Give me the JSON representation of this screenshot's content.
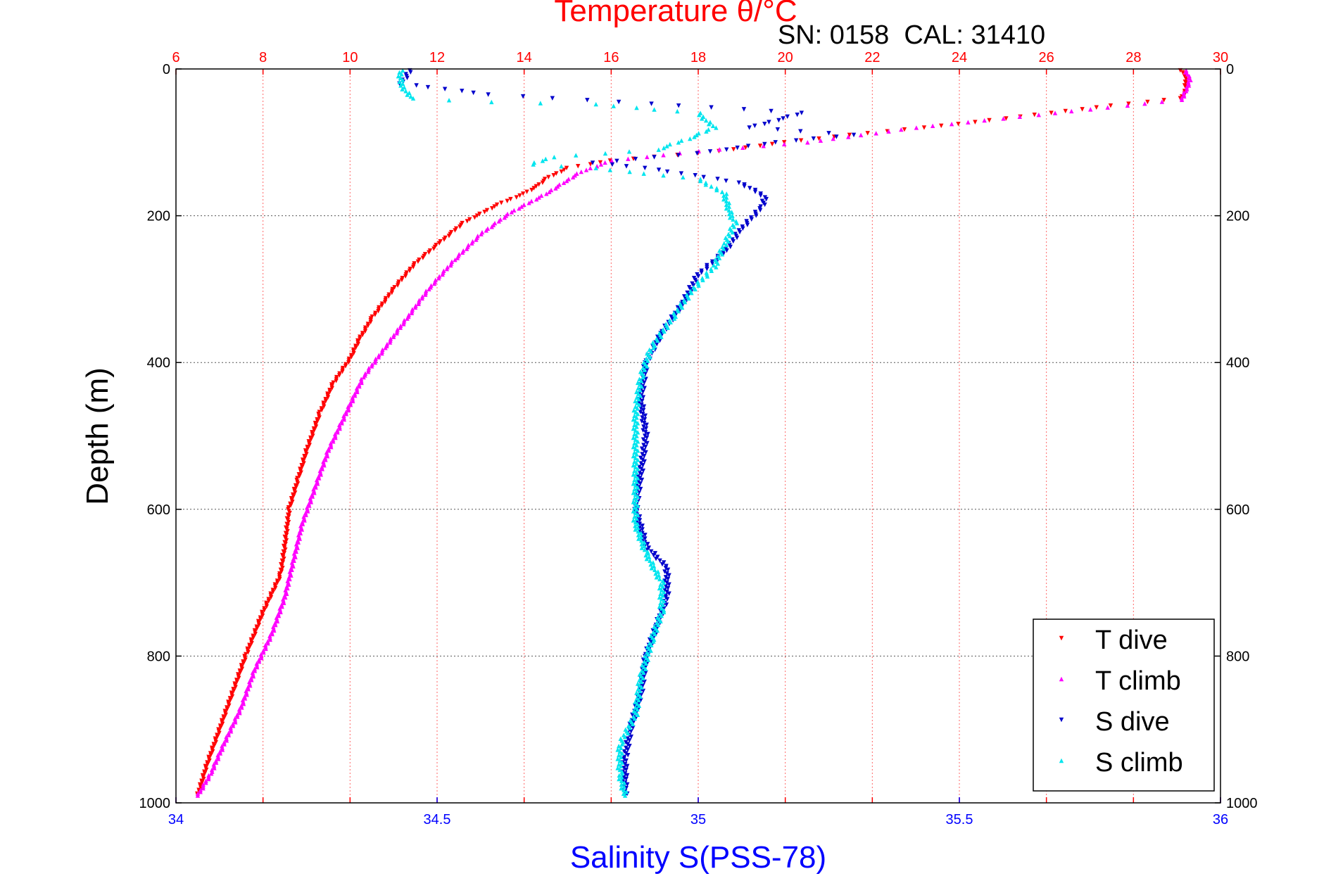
{
  "chart_data": {
    "type": "scatter",
    "title": "Temperature θ/°C",
    "annotation": "SN: 0158  CAL: 31410",
    "xlabel_bottom": "Salinity S(PSS-78)",
    "xlabel_top": "Temperature θ/°C",
    "ylabel": "Depth (m)",
    "x_bottom_range": [
      34,
      36
    ],
    "x_top_range": [
      6,
      30
    ],
    "y_range": [
      0,
      1000
    ],
    "y_reversed": true,
    "x_bottom_ticks": [
      "34",
      "34.5",
      "35",
      "35.5",
      "36"
    ],
    "x_top_ticks": [
      "6",
      "8",
      "10",
      "12",
      "14",
      "16",
      "18",
      "20",
      "22",
      "24",
      "26",
      "28",
      "30"
    ],
    "y_ticks": [
      "0",
      "200",
      "400",
      "600",
      "800",
      "1000"
    ],
    "grid": true,
    "legend_position": "bottom-right",
    "series": [
      {
        "name": "T dive",
        "axis": "temperature",
        "color": "#ff0000",
        "marker": "triangle-down",
        "points": [
          [
            29.1,
            2
          ],
          [
            29.2,
            10
          ],
          [
            29.2,
            30
          ],
          [
            29.1,
            40
          ],
          [
            27.5,
            50
          ],
          [
            24,
            75
          ],
          [
            21.5,
            90
          ],
          [
            20,
            100
          ],
          [
            18.5,
            112
          ],
          [
            16,
            125
          ],
          [
            15,
            135
          ],
          [
            14.5,
            150
          ],
          [
            14.3,
            160
          ],
          [
            14,
            170
          ],
          [
            13.4,
            185
          ],
          [
            12.6,
            210
          ],
          [
            12,
            240
          ],
          [
            11.5,
            265
          ],
          [
            11,
            300
          ],
          [
            10.5,
            340
          ],
          [
            10.2,
            370
          ],
          [
            10,
            395
          ],
          [
            9.6,
            430
          ],
          [
            9.3,
            470
          ],
          [
            9,
            520
          ],
          [
            8.8,
            560
          ],
          [
            8.6,
            600
          ],
          [
            8.5,
            650
          ],
          [
            8.4,
            690
          ],
          [
            8,
            740
          ],
          [
            7.6,
            800
          ],
          [
            7.3,
            850
          ],
          [
            7,
            900
          ],
          [
            6.7,
            950
          ],
          [
            6.5,
            990
          ]
        ]
      },
      {
        "name": "T climb",
        "axis": "temperature",
        "color": "#ff00ff",
        "marker": "triangle-up",
        "points": [
          [
            29.2,
            2
          ],
          [
            29.3,
            15
          ],
          [
            29.2,
            30
          ],
          [
            29.1,
            42
          ],
          [
            27,
            55
          ],
          [
            23,
            80
          ],
          [
            20.5,
            100
          ],
          [
            18,
            112
          ],
          [
            16,
            125
          ],
          [
            15.3,
            140
          ],
          [
            14.9,
            155
          ],
          [
            14.5,
            170
          ],
          [
            13.7,
            195
          ],
          [
            13,
            225
          ],
          [
            12.4,
            260
          ],
          [
            11.8,
            300
          ],
          [
            11.3,
            340
          ],
          [
            10.8,
            380
          ],
          [
            10.3,
            420
          ],
          [
            9.9,
            470
          ],
          [
            9.5,
            520
          ],
          [
            9.2,
            570
          ],
          [
            8.9,
            620
          ],
          [
            8.7,
            670
          ],
          [
            8.5,
            720
          ],
          [
            8.2,
            770
          ],
          [
            7.8,
            820
          ],
          [
            7.5,
            870
          ],
          [
            7.1,
            920
          ],
          [
            6.8,
            960
          ],
          [
            6.5,
            990
          ]
        ]
      },
      {
        "name": "S dive",
        "axis": "salinity",
        "color": "#0000cc",
        "marker": "triangle-down",
        "points": [
          [
            34.45,
            2
          ],
          [
            34.43,
            20
          ],
          [
            34.6,
            35
          ],
          [
            34.85,
            45
          ],
          [
            35.2,
            60
          ],
          [
            35.1,
            80
          ],
          [
            35.3,
            90
          ],
          [
            35.15,
            100
          ],
          [
            35,
            115
          ],
          [
            34.8,
            128
          ],
          [
            34.9,
            135
          ],
          [
            35.08,
            155
          ],
          [
            35.13,
            175
          ],
          [
            35.12,
            190
          ],
          [
            35.08,
            220
          ],
          [
            35.05,
            250
          ],
          [
            35,
            280
          ],
          [
            34.97,
            320
          ],
          [
            34.93,
            360
          ],
          [
            34.9,
            400
          ],
          [
            34.89,
            450
          ],
          [
            34.9,
            500
          ],
          [
            34.89,
            550
          ],
          [
            34.88,
            600
          ],
          [
            34.9,
            650
          ],
          [
            34.94,
            680
          ],
          [
            34.94,
            720
          ],
          [
            34.92,
            760
          ],
          [
            34.9,
            800
          ],
          [
            34.89,
            850
          ],
          [
            34.87,
            900
          ],
          [
            34.86,
            940
          ],
          [
            34.86,
            990
          ]
        ]
      },
      {
        "name": "S climb",
        "axis": "salinity",
        "color": "#00e5ee",
        "marker": "triangle-up",
        "points": [
          [
            34.43,
            2
          ],
          [
            34.43,
            20
          ],
          [
            34.45,
            40
          ],
          [
            34.6,
            45
          ],
          [
            34.8,
            48
          ],
          [
            35,
            60
          ],
          [
            35.03,
            80
          ],
          [
            34.98,
            95
          ],
          [
            34.92,
            110
          ],
          [
            34.72,
            120
          ],
          [
            34.68,
            130
          ],
          [
            34.8,
            135
          ],
          [
            35,
            150
          ],
          [
            35.05,
            170
          ],
          [
            35.06,
            195
          ],
          [
            35.07,
            210
          ],
          [
            35.05,
            240
          ],
          [
            35.03,
            270
          ],
          [
            34.99,
            300
          ],
          [
            34.95,
            340
          ],
          [
            34.91,
            380
          ],
          [
            34.89,
            420
          ],
          [
            34.88,
            470
          ],
          [
            34.88,
            520
          ],
          [
            34.88,
            570
          ],
          [
            34.88,
            620
          ],
          [
            34.9,
            660
          ],
          [
            34.93,
            700
          ],
          [
            34.93,
            740
          ],
          [
            34.91,
            780
          ],
          [
            34.89,
            830
          ],
          [
            34.88,
            880
          ],
          [
            34.85,
            920
          ],
          [
            34.85,
            960
          ],
          [
            34.86,
            990
          ]
        ]
      }
    ]
  }
}
